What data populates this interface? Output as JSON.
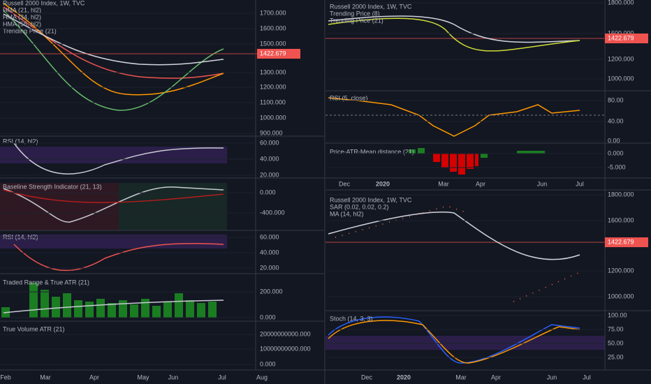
{
  "left": {
    "panels": [
      {
        "legend": [
          "Russell 2000 Index, 1W, TVC",
          "HMA (21, hl2)",
          "HMA (34, hl2)",
          "HMA (55, hl2)",
          "Trending Price (21)"
        ],
        "ticks": [
          "1700.000",
          "1600.000",
          "1500.000",
          "1300.000",
          "1200.000",
          "1100.000",
          "1000.000",
          "900.000"
        ]
      },
      {
        "legend": [
          "RSI (14, hl2)"
        ],
        "ticks": [
          "60.000",
          "40.000",
          "20.000"
        ]
      },
      {
        "legend": [
          "Baseline Strength Indicator (21, 13)"
        ],
        "ticks": [
          "0.000",
          "-400.000"
        ]
      },
      {
        "legend": [
          "RSI (14, hl2)"
        ],
        "ticks": [
          "60.000",
          "40.000",
          "20.000"
        ]
      },
      {
        "legend": [
          "Traded Range & True ATR (21)"
        ],
        "ticks": [
          "200.000",
          "0.000"
        ]
      },
      {
        "legend": [
          "True Volume ATR (21)"
        ],
        "ticks": [
          "20000000000.000",
          "10000000000.000",
          "0.000"
        ]
      }
    ],
    "price_label": "1422.679",
    "xaxis": [
      "Feb",
      "Mar",
      "Apr",
      "May",
      "Jun",
      "Jul",
      "Aug"
    ]
  },
  "right_top": {
    "panels": [
      {
        "legend": [
          "Russell 2000 Index, 1W, TVC",
          "Trending Price (8)",
          "Trending Price (21)"
        ],
        "ticks": [
          "1800.000",
          "1600.000",
          "1200.000",
          "1000.000"
        ]
      },
      {
        "legend": [
          "RSI (5, close)"
        ],
        "ticks": [
          "80.00",
          "40.00",
          "0.00"
        ]
      },
      {
        "legend": [
          "Price-ATR-Mean distance (21)"
        ],
        "ticks": [
          "0.000",
          "-5.000"
        ]
      }
    ],
    "price_label": "1422.679",
    "xaxis": [
      "Dec",
      "2020",
      "Mar",
      "Apr",
      "Jun",
      "Jul"
    ]
  },
  "right_bottom": {
    "panels": [
      {
        "legend": [
          "Russell 2000 Index, 1W, TVC",
          "SAR (0.02, 0.02, 0.2)",
          "MA (14, hl2)"
        ],
        "ticks": [
          "1800.000",
          "1600.000",
          "1200.000",
          "1000.000"
        ]
      },
      {
        "legend": [
          "Stoch (14, 3, 3)"
        ],
        "ticks": [
          "100.00",
          "75.00",
          "50.00",
          "25.00"
        ]
      }
    ],
    "price_label": "1422.679",
    "xaxis": [
      "Dec",
      "2020",
      "Mar",
      "Apr",
      "Jun",
      "Jul"
    ]
  }
}
